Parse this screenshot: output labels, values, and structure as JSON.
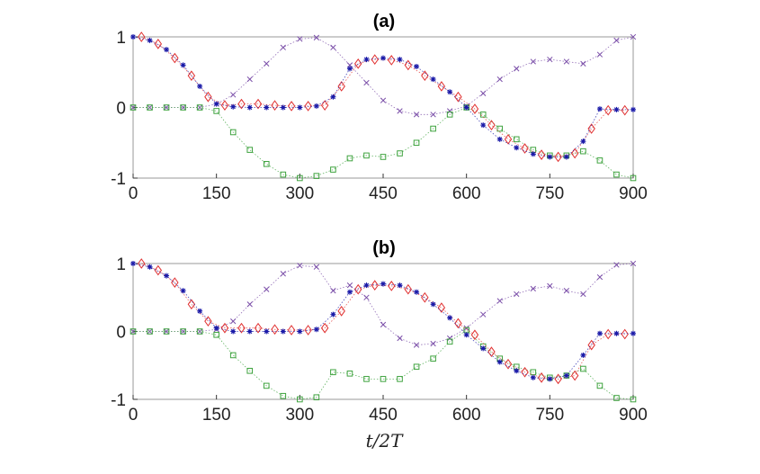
{
  "chart_data": [
    {
      "type": "scatter",
      "title": "(a)",
      "xlabel": "",
      "ylabel": "",
      "xlim": [
        0,
        900
      ],
      "ylim": [
        -1,
        1
      ],
      "xticks": [
        "0",
        "150",
        "300",
        "450",
        "600",
        "750",
        "900"
      ],
      "yticks": [
        "1",
        "0",
        "-1"
      ],
      "grid": false,
      "series": [
        {
          "marker": "x-cross",
          "color": "#7a4ea8",
          "line": "dotted",
          "x": [
            0,
            30,
            60,
            90,
            120,
            150,
            180,
            210,
            240,
            270,
            300,
            330,
            360,
            390,
            420,
            450,
            480,
            510,
            540,
            570,
            600,
            630,
            660,
            690,
            720,
            750,
            780,
            810,
            840,
            870,
            900
          ],
          "y": [
            0,
            0,
            0,
            0,
            0,
            0.05,
            0.18,
            0.4,
            0.62,
            0.85,
            0.97,
            0.99,
            0.85,
            0.6,
            0.35,
            0.1,
            -0.05,
            -0.1,
            -0.1,
            -0.05,
            0.02,
            0.2,
            0.4,
            0.55,
            0.65,
            0.68,
            0.65,
            0.62,
            0.75,
            0.95,
            1.0
          ]
        },
        {
          "marker": "square",
          "color": "#3fa33f",
          "line": "dotted",
          "x": [
            0,
            30,
            60,
            90,
            120,
            150,
            180,
            210,
            240,
            270,
            300,
            330,
            360,
            390,
            420,
            450,
            480,
            510,
            540,
            570,
            600,
            630,
            660,
            690,
            720,
            750,
            780,
            810,
            840,
            870,
            900
          ],
          "y": [
            0,
            0,
            0,
            0,
            0,
            -0.05,
            -0.35,
            -0.6,
            -0.8,
            -0.95,
            -1.0,
            -0.97,
            -0.88,
            -0.72,
            -0.68,
            -0.7,
            -0.65,
            -0.5,
            -0.3,
            -0.1,
            0.0,
            -0.1,
            -0.3,
            -0.45,
            -0.6,
            -0.68,
            -0.68,
            -0.62,
            -0.75,
            -0.95,
            -1.0
          ]
        },
        {
          "marker": "diamond",
          "color": "#e03030",
          "line": "dotted",
          "x": [
            15,
            45,
            75,
            105,
            135,
            165,
            195,
            225,
            255,
            285,
            315,
            345,
            375,
            405,
            435,
            465,
            495,
            525,
            555,
            585,
            615,
            645,
            675,
            705,
            735,
            765,
            795,
            825,
            855,
            885
          ],
          "y": [
            1.0,
            0.9,
            0.7,
            0.45,
            0.15,
            0.03,
            0.05,
            0.05,
            0.03,
            0.02,
            0.02,
            0.03,
            0.3,
            0.62,
            0.68,
            0.67,
            0.6,
            0.45,
            0.3,
            0.15,
            -0.02,
            -0.25,
            -0.45,
            -0.58,
            -0.67,
            -0.7,
            -0.65,
            -0.3,
            -0.04,
            -0.04
          ]
        },
        {
          "marker": "asterisk",
          "color": "#1a1aa8",
          "line": "dotted",
          "x": [
            0,
            30,
            60,
            90,
            120,
            150,
            180,
            210,
            240,
            270,
            300,
            330,
            360,
            390,
            420,
            450,
            480,
            510,
            540,
            570,
            600,
            630,
            660,
            690,
            720,
            750,
            780,
            810,
            840,
            870,
            900
          ],
          "y": [
            1.0,
            0.95,
            0.82,
            0.6,
            0.3,
            0.05,
            0.01,
            0.0,
            0.0,
            0.0,
            0.0,
            0.02,
            0.15,
            0.55,
            0.68,
            0.7,
            0.68,
            0.58,
            0.4,
            0.22,
            0.0,
            -0.25,
            -0.45,
            -0.57,
            -0.66,
            -0.7,
            -0.7,
            -0.48,
            -0.02,
            -0.03,
            -0.03
          ]
        }
      ]
    },
    {
      "type": "scatter",
      "title": "(b)",
      "xlabel": "t/2T",
      "ylabel": "",
      "xlim": [
        0,
        900
      ],
      "ylim": [
        -1,
        1
      ],
      "xticks": [
        "0",
        "150",
        "300",
        "450",
        "600",
        "750",
        "900"
      ],
      "yticks": [
        "1",
        "0",
        "-1"
      ],
      "grid": false,
      "series": [
        {
          "marker": "x-cross",
          "color": "#7a4ea8",
          "line": "dotted",
          "x": [
            0,
            30,
            60,
            90,
            120,
            150,
            180,
            210,
            240,
            270,
            300,
            330,
            360,
            390,
            420,
            450,
            480,
            510,
            540,
            570,
            600,
            630,
            660,
            690,
            720,
            750,
            780,
            810,
            840,
            870,
            900
          ],
          "y": [
            0,
            0,
            0,
            0,
            0,
            0.03,
            0.15,
            0.4,
            0.62,
            0.85,
            0.97,
            0.95,
            0.6,
            0.68,
            0.5,
            0.1,
            -0.1,
            -0.2,
            -0.18,
            -0.1,
            0.05,
            0.25,
            0.45,
            0.55,
            0.63,
            0.67,
            0.6,
            0.55,
            0.8,
            0.98,
            1.0
          ]
        },
        {
          "marker": "square",
          "color": "#3fa33f",
          "line": "dotted",
          "x": [
            0,
            30,
            60,
            90,
            120,
            150,
            180,
            210,
            240,
            270,
            300,
            330,
            360,
            390,
            420,
            450,
            480,
            510,
            540,
            570,
            600,
            630,
            660,
            690,
            720,
            750,
            780,
            810,
            840,
            870,
            900
          ],
          "y": [
            0,
            0,
            0,
            0,
            0,
            -0.05,
            -0.35,
            -0.58,
            -0.8,
            -0.95,
            -1.0,
            -0.97,
            -0.6,
            -0.62,
            -0.7,
            -0.7,
            -0.7,
            -0.52,
            -0.4,
            -0.15,
            0.02,
            -0.22,
            -0.4,
            -0.52,
            -0.6,
            -0.68,
            -0.65,
            -0.55,
            -0.8,
            -0.98,
            -1.0
          ]
        },
        {
          "marker": "diamond",
          "color": "#e03030",
          "line": "dotted",
          "x": [
            15,
            45,
            75,
            105,
            135,
            165,
            195,
            225,
            255,
            285,
            315,
            345,
            375,
            405,
            435,
            465,
            495,
            525,
            555,
            585,
            615,
            645,
            675,
            705,
            735,
            765,
            795,
            825,
            855,
            885
          ],
          "y": [
            1.0,
            0.9,
            0.72,
            0.4,
            0.15,
            0.05,
            0.05,
            0.05,
            0.03,
            0.02,
            0.02,
            0.05,
            0.3,
            0.62,
            0.68,
            0.67,
            0.62,
            0.5,
            0.35,
            0.12,
            -0.05,
            -0.3,
            -0.48,
            -0.6,
            -0.68,
            -0.7,
            -0.65,
            -0.2,
            -0.04,
            -0.04
          ]
        },
        {
          "marker": "asterisk",
          "color": "#1a1aa8",
          "line": "dotted",
          "x": [
            0,
            30,
            60,
            90,
            120,
            150,
            180,
            210,
            240,
            270,
            300,
            330,
            360,
            390,
            420,
            450,
            480,
            510,
            540,
            570,
            600,
            630,
            660,
            690,
            720,
            750,
            780,
            810,
            840,
            870,
            900
          ],
          "y": [
            1.0,
            0.95,
            0.82,
            0.6,
            0.3,
            0.05,
            0.0,
            0.0,
            0.0,
            0.0,
            0.0,
            0.03,
            0.25,
            0.58,
            0.68,
            0.7,
            0.68,
            0.58,
            0.4,
            0.2,
            -0.05,
            -0.25,
            -0.45,
            -0.58,
            -0.68,
            -0.7,
            -0.65,
            -0.35,
            -0.03,
            -0.03,
            -0.03
          ]
        }
      ]
    }
  ]
}
